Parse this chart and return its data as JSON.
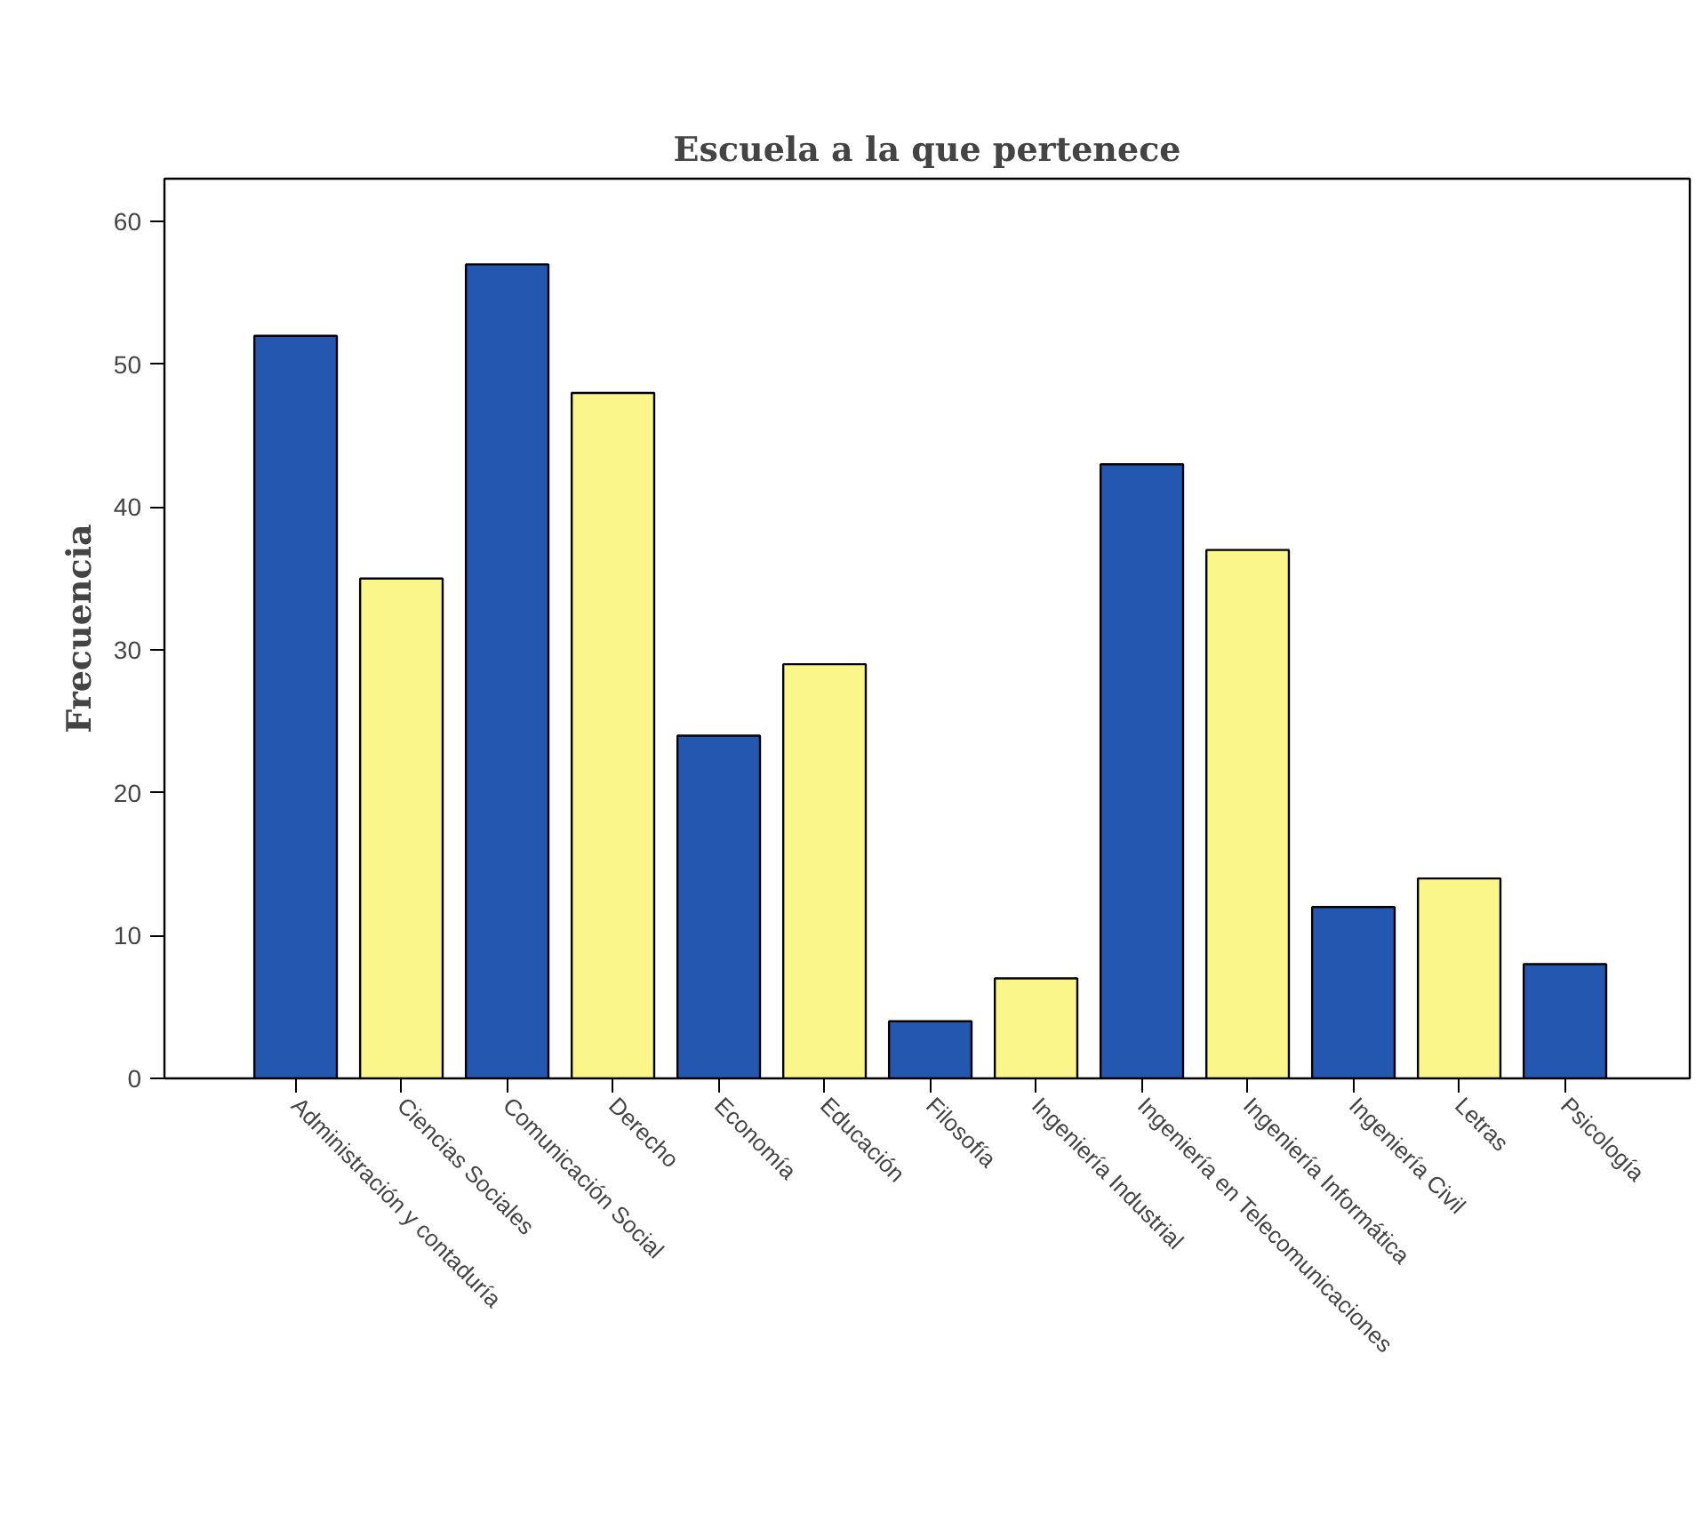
{
  "chart_data": {
    "type": "bar",
    "title": "Escuela a la que pertenece",
    "ylabel": "Frecuencia",
    "categories": [
      "Administración y contaduría",
      "Ciencias Sociales",
      "Comunicación Social",
      "Derecho",
      "Economía",
      "Educación",
      "Filosofía",
      "Ingeniería Industrial",
      "Ingeniería en Telecomunicaciones",
      "Ingeniería Informática",
      "Ingeniería Civil",
      "Letras",
      "Psicología"
    ],
    "values": [
      52,
      35,
      57,
      48,
      24,
      29,
      4,
      7,
      43,
      37,
      12,
      14,
      8
    ],
    "colors": [
      "#2457b0",
      "#fbf68a",
      "#2457b0",
      "#fbf68a",
      "#2457b0",
      "#fbf68a",
      "#2457b0",
      "#fbf68a",
      "#2457b0",
      "#fbf68a",
      "#2457b0",
      "#fbf68a",
      "#2457b0"
    ],
    "ylim": [
      0,
      63
    ],
    "yticks": [
      0,
      10,
      20,
      30,
      40,
      50,
      60
    ],
    "grid": false
  }
}
